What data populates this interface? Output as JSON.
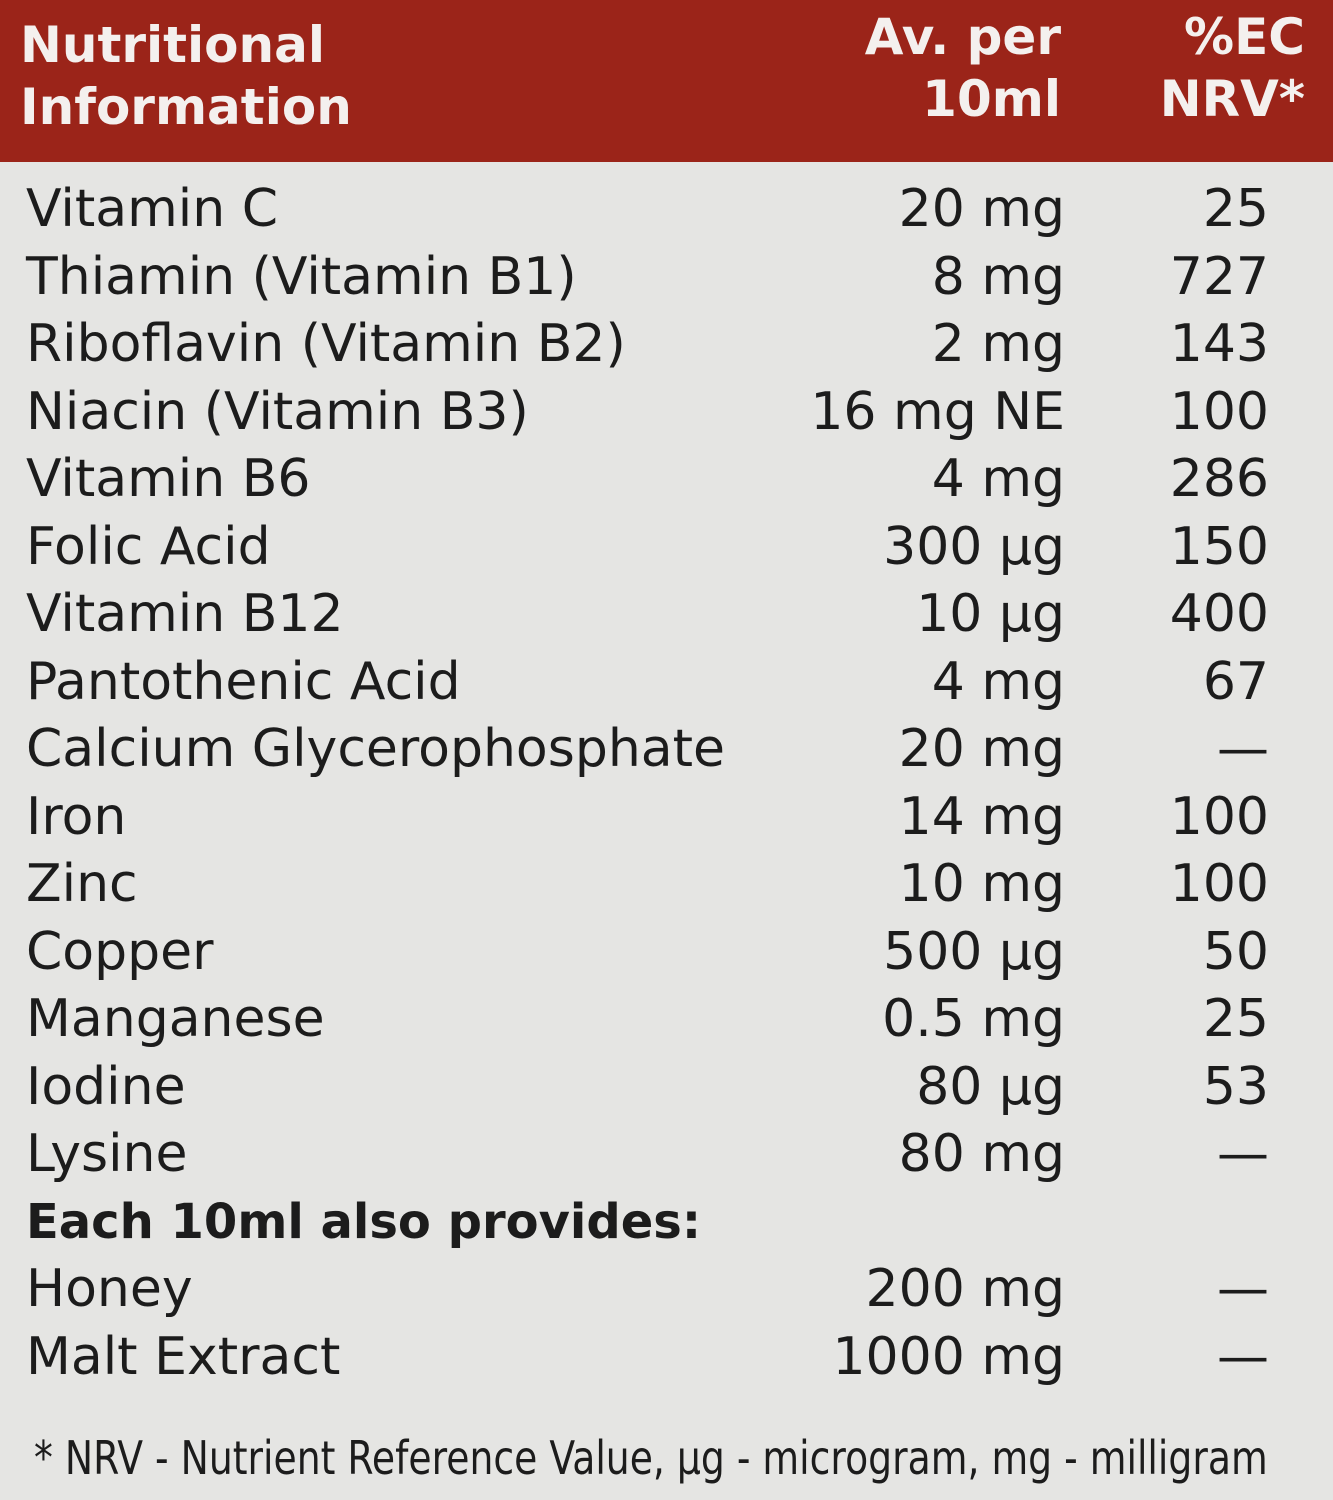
{
  "header": {
    "title_line1": "Nutritional",
    "title_line2": "Information",
    "col1_line1": "Av. per",
    "col1_line2": "10ml",
    "col2_line1": "%EC",
    "col2_line2": "NRV*"
  },
  "colors": {
    "header_bg": "#9b2419",
    "body_bg": "#e5e5e3"
  },
  "rows": [
    {
      "name": "Vitamin C",
      "value": "20 mg",
      "nrv": "25"
    },
    {
      "name": "Thiamin (Vitamin B1)",
      "value": "8 mg",
      "nrv": "727"
    },
    {
      "name": "Riboflavin (Vitamin B2)",
      "value": "2 mg",
      "nrv": "143"
    },
    {
      "name": "Niacin (Vitamin B3)",
      "value": "16 mg NE",
      "nrv": "100"
    },
    {
      "name": "Vitamin B6",
      "value": "4 mg",
      "nrv": "286"
    },
    {
      "name": "Folic Acid",
      "value": "300 µg",
      "nrv": "150"
    },
    {
      "name": "Vitamin B12",
      "value": "10 µg",
      "nrv": "400"
    },
    {
      "name": "Pantothenic Acid",
      "value": "4 mg",
      "nrv": "67"
    },
    {
      "name": "Calcium Glycerophosphate",
      "value": "20 mg",
      "nrv": "—"
    },
    {
      "name": "Iron",
      "value": "14 mg",
      "nrv": "100"
    },
    {
      "name": "Zinc",
      "value": "10 mg",
      "nrv": "100"
    },
    {
      "name": "Copper",
      "value": "500 µg",
      "nrv": "50"
    },
    {
      "name": "Manganese",
      "value": "0.5 mg",
      "nrv": "25"
    },
    {
      "name": "Iodine",
      "value": "80 µg",
      "nrv": "53"
    },
    {
      "name": "Lysine",
      "value": "80 mg",
      "nrv": "—"
    }
  ],
  "also": {
    "heading": "Each 10ml also provides:",
    "rows": [
      {
        "name": "Honey",
        "value": "200 mg",
        "nrv": "—"
      },
      {
        "name": "Malt Extract",
        "value": "1000 mg",
        "nrv": "—"
      }
    ]
  },
  "footnote": "* NRV - Nutrient Reference Value, µg - microgram,  mg - milligram"
}
